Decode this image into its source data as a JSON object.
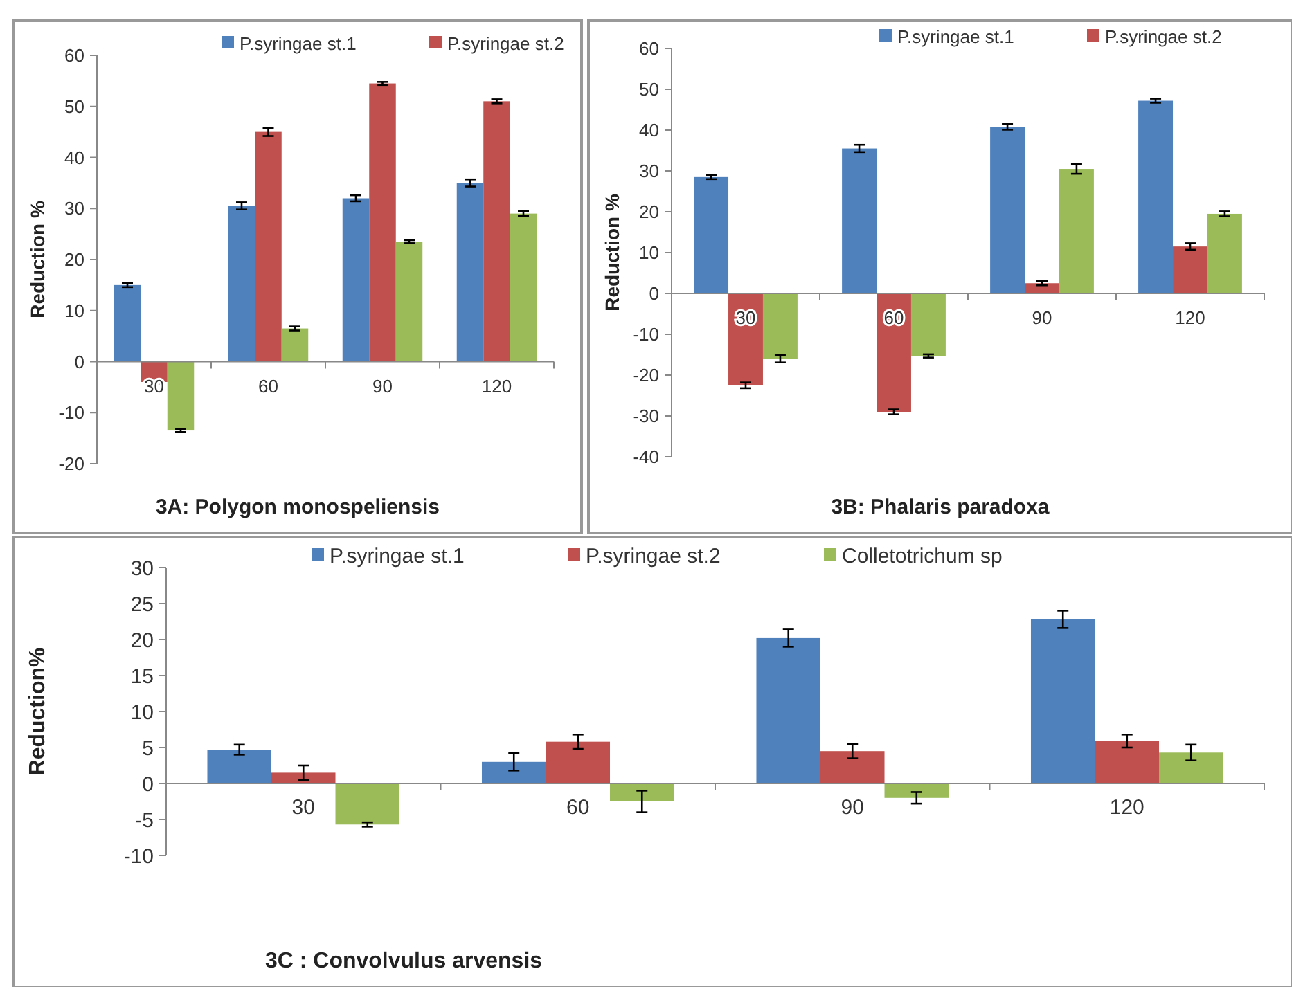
{
  "chart_data": [
    {
      "type": "bar",
      "title": "3A: Polygon monospeliensis",
      "ylabel": "Reduction %",
      "categories": [
        "30",
        "60",
        "90",
        "120"
      ],
      "ylim": [
        -20,
        60
      ],
      "yticks": [
        -20,
        -10,
        0,
        10,
        20,
        30,
        40,
        50,
        60
      ],
      "grid": false,
      "legend": "top",
      "series": [
        {
          "name": "P.syringae st.1",
          "color": "#4f81bd",
          "values": [
            15,
            30.5,
            32,
            35
          ],
          "errors": [
            0.4,
            0.7,
            0.6,
            0.7
          ]
        },
        {
          "name": "P.syringae st.2",
          "color": "#c0504d",
          "values": [
            -4,
            45,
            54.5,
            51
          ],
          "errors": [
            0.4,
            0.8,
            0.3,
            0.4
          ]
        },
        {
          "color": "#9bbb59",
          "values": [
            -13.5,
            6.5,
            23.5,
            29
          ],
          "errors": [
            0.3,
            0.4,
            0.3,
            0.5
          ]
        }
      ]
    },
    {
      "type": "bar",
      "title": "3B: Phalaris paradoxa",
      "ylabel": "Reduction %",
      "categories": [
        "30",
        "60",
        "90",
        "120"
      ],
      "ylim": [
        -40,
        60
      ],
      "yticks": [
        -40,
        -30,
        -20,
        -10,
        0,
        10,
        20,
        30,
        40,
        50,
        60
      ],
      "grid": false,
      "legend": "top",
      "series": [
        {
          "name": "P.syringae st.1",
          "color": "#4f81bd",
          "values": [
            28.5,
            35.5,
            40.8,
            47.2
          ],
          "errors": [
            0.5,
            0.9,
            0.7,
            0.5
          ]
        },
        {
          "name": "P.syringae st.2",
          "color": "#c0504d",
          "values": [
            -22.5,
            -29,
            2.5,
            11.5
          ],
          "errors": [
            0.7,
            0.6,
            0.5,
            0.8
          ]
        },
        {
          "color": "#9bbb59",
          "values": [
            -16,
            -15.3,
            30.5,
            19.5
          ],
          "errors": [
            0.9,
            0.4,
            1.2,
            0.6
          ]
        }
      ]
    },
    {
      "type": "bar",
      "title": "3C : Convolvulus arvensis",
      "ylabel": "Reduction%",
      "categories": [
        "30",
        "60",
        "90",
        "120"
      ],
      "ylim": [
        -10,
        30
      ],
      "yticks": [
        -10,
        -5,
        0,
        5,
        10,
        15,
        20,
        25,
        30
      ],
      "grid": false,
      "legend": "top",
      "series": [
        {
          "name": "P.syringae st.1",
          "color": "#4f81bd",
          "values": [
            4.7,
            3,
            20.2,
            22.8
          ],
          "errors": [
            0.7,
            1.2,
            1.2,
            1.2
          ]
        },
        {
          "name": "P.syringae st.2",
          "color": "#c0504d",
          "values": [
            1.5,
            5.8,
            4.5,
            5.9
          ],
          "errors": [
            1,
            1,
            1,
            0.9
          ]
        },
        {
          "name": "Colletotrichum sp",
          "color": "#9bbb59",
          "values": [
            -5.7,
            -2.5,
            -2,
            4.3
          ],
          "errors": [
            0.3,
            1.5,
            0.8,
            1.1
          ]
        }
      ]
    }
  ]
}
